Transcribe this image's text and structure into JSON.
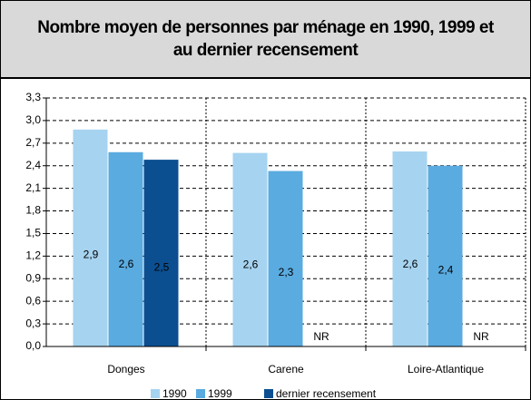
{
  "chart_data": {
    "type": "bar",
    "title": "Nombre moyen de personnes par ménage en 1990, 1999 et au dernier recensement",
    "categories": [
      "Donges",
      "Carene",
      "Loire-Atlantique"
    ],
    "series": [
      {
        "name": "1990",
        "color": "#a6d3f0",
        "values": [
          2.88,
          2.57,
          2.59
        ],
        "value_labels": [
          "2,9",
          "2,6",
          "2,6"
        ]
      },
      {
        "name": "1999",
        "color": "#5aabe0",
        "values": [
          2.58,
          2.33,
          2.4
        ],
        "value_labels": [
          "2,6",
          "2,3",
          "2,4"
        ]
      },
      {
        "name": "dernier recensement",
        "color": "#0b4f91",
        "values": [
          2.48,
          null,
          null
        ],
        "value_labels": [
          "2,5",
          "NR",
          "NR"
        ]
      }
    ],
    "ylim": [
      0,
      3.3
    ],
    "yticks": [
      {
        "value": 0,
        "label": "0,0"
      },
      {
        "value": 0.3,
        "label": "0,3"
      },
      {
        "value": 0.6,
        "label": "0,6"
      },
      {
        "value": 0.9,
        "label": "0,9"
      },
      {
        "value": 1.2,
        "label": "1,2"
      },
      {
        "value": 1.5,
        "label": "1,5"
      },
      {
        "value": 1.8,
        "label": "1,8"
      },
      {
        "value": 2.1,
        "label": "2,1"
      },
      {
        "value": 2.4,
        "label": "2,4"
      },
      {
        "value": 2.7,
        "label": "2,7"
      },
      {
        "value": 3.0,
        "label": "3,0"
      },
      {
        "value": 3.3,
        "label": "3,3"
      }
    ],
    "grid": true,
    "legend": "bottom"
  }
}
